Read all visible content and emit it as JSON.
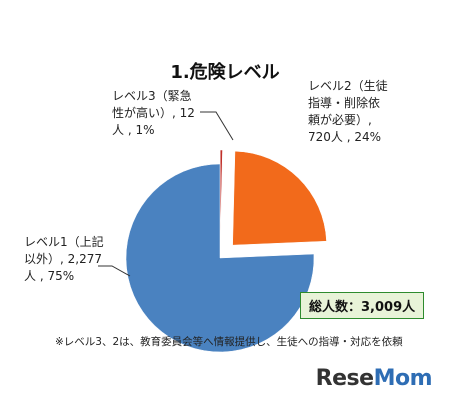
{
  "chart_data": {
    "type": "pie",
    "title": "1.危険レベル",
    "total": "総人数：3,009人",
    "slices": [
      {
        "name": "レベル1（上記以外）",
        "value": 2277,
        "percent": 75,
        "color": "#4a82c0",
        "label": "レベル1（上記\n以外）, 2,277\n人 , 75%"
      },
      {
        "name": "レベル2（生徒指導・削除依頼が必要）",
        "value": 720,
        "percent": 24,
        "color": "#f26a1b",
        "label": "レベル2（生徒\n指導・削除依\n頼が必要）,\n720人 , 24%"
      },
      {
        "name": "レベル3（緊急性が高い）",
        "value": 12,
        "percent": 1,
        "color": "#c0302a",
        "label": "レベル3（緊急\n性が高い）, 12\n人 , 1%"
      }
    ],
    "footnote": "※レベル3、2は、教育委員会等へ情報提供し、生徒への指導・対応を依頼"
  },
  "logo": {
    "text": "ReseMom"
  }
}
